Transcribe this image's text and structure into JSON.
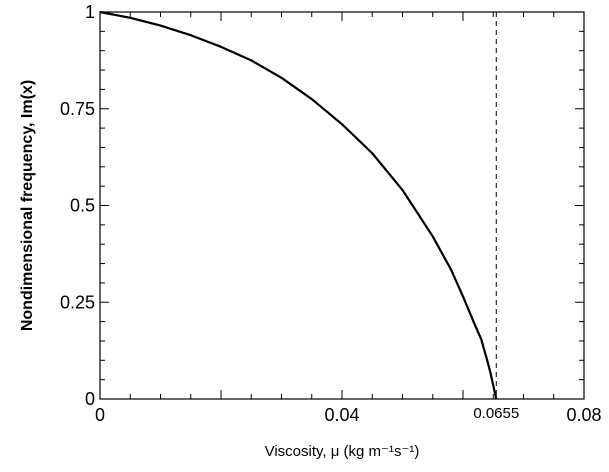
{
  "chart_data": {
    "type": "line",
    "xlabel": "Viscosity, μ  (kg m⁻¹s⁻¹)",
    "ylabel": "Nondimensional frequency, Im(x)",
    "xlim": [
      0,
      0.08
    ],
    "ylim": [
      0,
      1
    ],
    "x_ticks": [
      {
        "value": 0,
        "label": "0"
      },
      {
        "value": 0.04,
        "label": "0.04"
      },
      {
        "value": 0.0655,
        "label": "0.0655"
      },
      {
        "value": 0.08,
        "label": "0.08"
      }
    ],
    "y_ticks": [
      {
        "value": 0,
        "label": "0"
      },
      {
        "value": 0.25,
        "label": "0.25"
      },
      {
        "value": 0.5,
        "label": "0.5"
      },
      {
        "value": 0.75,
        "label": "0.75"
      },
      {
        "value": 1,
        "label": "1"
      }
    ],
    "grid": false,
    "reference_line": {
      "x": 0.0655,
      "style": "dashed"
    },
    "series": [
      {
        "x": [
          0,
          0.005,
          0.01,
          0.015,
          0.02,
          0.025,
          0.03,
          0.035,
          0.04,
          0.045,
          0.05,
          0.055,
          0.058,
          0.06,
          0.062,
          0.063,
          0.064,
          0.0645,
          0.065,
          0.0655
        ],
        "y": [
          1.0,
          0.985,
          0.965,
          0.94,
          0.91,
          0.875,
          0.83,
          0.775,
          0.71,
          0.635,
          0.54,
          0.42,
          0.335,
          0.265,
          0.19,
          0.155,
          0.1,
          0.07,
          0.035,
          0.0
        ]
      }
    ]
  }
}
